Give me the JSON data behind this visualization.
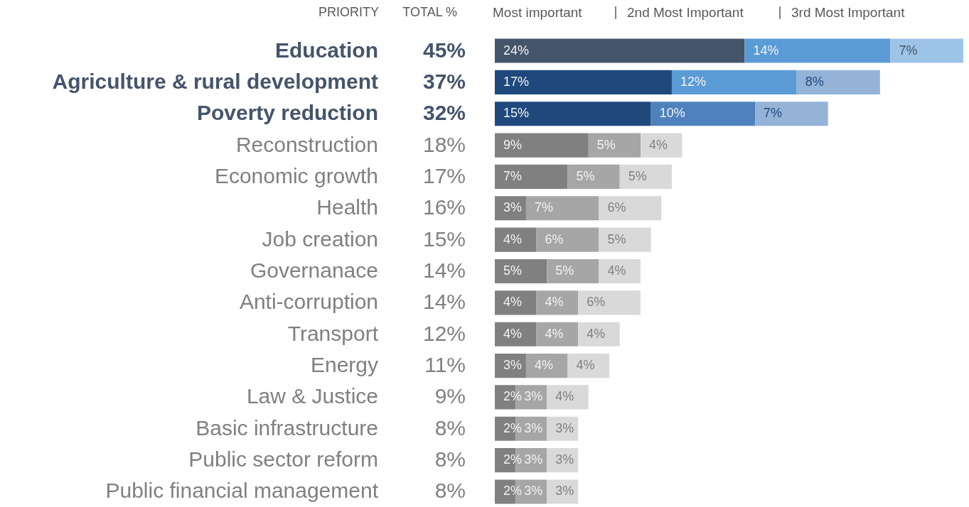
{
  "chart_data": {
    "type": "bar",
    "orientation": "horizontal",
    "stacked": true,
    "annotations": [
      "PRIORITY",
      "TOTAL %"
    ],
    "categories": [
      "Education",
      "Agriculture & rural development",
      "Poverty reduction",
      "Reconstruction",
      "Economic growth",
      "Health",
      "Job creation",
      "Governanace",
      "Anti-corruption",
      "Transport",
      "Energy",
      "Law & Justice",
      "Basic infrastructure",
      "Public sector reform",
      "Public financial management"
    ],
    "totals": [
      "45%",
      "37%",
      "32%",
      "18%",
      "17%",
      "16%",
      "15%",
      "14%",
      "14%",
      "12%",
      "11%",
      "9%",
      "8%",
      "8%",
      "8%"
    ],
    "legend": "top",
    "series": [
      {
        "name": "Most important",
        "colors": [
          "#44546a",
          "#1f497d",
          "#1f497d",
          "#808080",
          "#808080",
          "#808080",
          "#808080",
          "#808080",
          "#808080",
          "#808080",
          "#808080",
          "#808080",
          "#808080",
          "#808080",
          "#808080"
        ],
        "values": [
          24,
          17,
          15,
          9,
          7,
          3,
          4,
          5,
          4,
          4,
          3,
          2,
          2,
          2,
          2
        ],
        "value_labels": [
          "24%",
          "17%",
          "15%",
          "9%",
          "7%",
          "3%",
          "4%",
          "5%",
          "4%",
          "4%",
          "3%",
          "2%",
          "2%",
          "2%",
          "2%"
        ]
      },
      {
        "name": "2nd Most Important",
        "colors": [
          "#5b9bd5",
          "#5b9bd5",
          "#4f81bd",
          "#a6a6a6",
          "#a6a6a6",
          "#a6a6a6",
          "#a6a6a6",
          "#a6a6a6",
          "#a6a6a6",
          "#a6a6a6",
          "#a6a6a6",
          "#a6a6a6",
          "#a6a6a6",
          "#a6a6a6",
          "#a6a6a6"
        ],
        "values": [
          14,
          12,
          10,
          5,
          5,
          7,
          6,
          5,
          4,
          4,
          4,
          3,
          3,
          3,
          3
        ],
        "value_labels": [
          "14%",
          "12%",
          "10%",
          "5%",
          "5%",
          "7%",
          "6%",
          "5%",
          "4%",
          "4%",
          "4%",
          "3%",
          "3%",
          "3%",
          "3%"
        ]
      },
      {
        "name": "3rd Most Important",
        "colors": [
          "#9dc3e6",
          "#95b3d7",
          "#95b3d7",
          "#d9d9d9",
          "#d9d9d9",
          "#d9d9d9",
          "#d9d9d9",
          "#d9d9d9",
          "#d9d9d9",
          "#d9d9d9",
          "#d9d9d9",
          "#d9d9d9",
          "#d9d9d9",
          "#d9d9d9",
          "#d9d9d9"
        ],
        "values": [
          7,
          8,
          7,
          4,
          5,
          6,
          5,
          4,
          6,
          4,
          4,
          4,
          3,
          3,
          3
        ],
        "value_labels": [
          "7%",
          "8%",
          "7%",
          "4%",
          "5%",
          "6%",
          "5%",
          "4%",
          "6%",
          "4%",
          "4%",
          "4%",
          "3%",
          "3%",
          "3%"
        ]
      }
    ]
  }
}
